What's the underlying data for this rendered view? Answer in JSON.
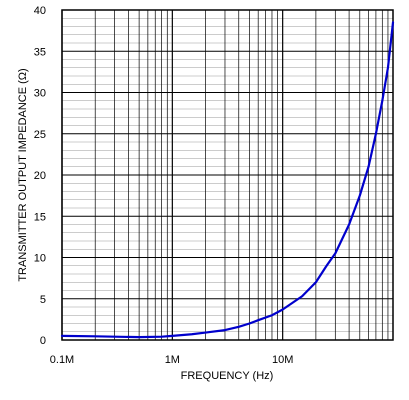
{
  "chart_data": {
    "type": "line",
    "title": "",
    "xlabel": "FREQUENCY (Hz)",
    "ylabel": "TRANSMITTER OUTPUT IMPEDANCE (Ω)",
    "x_scale": "log",
    "xlim": [
      100000,
      100000000
    ],
    "ylim": [
      0,
      40
    ],
    "grid": true,
    "line_color": "#0000cc",
    "x_ticks": [
      {
        "value": 100000,
        "label": "0.1M"
      },
      {
        "value": 1000000,
        "label": "1M"
      },
      {
        "value": 10000000,
        "label": "10M"
      }
    ],
    "y_ticks": [
      {
        "value": 0,
        "label": "0"
      },
      {
        "value": 5,
        "label": "5"
      },
      {
        "value": 10,
        "label": "10"
      },
      {
        "value": 15,
        "label": "15"
      },
      {
        "value": 20,
        "label": "20"
      },
      {
        "value": 25,
        "label": "25"
      },
      {
        "value": 30,
        "label": "30"
      },
      {
        "value": 35,
        "label": "35"
      },
      {
        "value": 40,
        "label": "40"
      }
    ],
    "series": [
      {
        "x": [
          100000,
          200000,
          300000,
          500000,
          800000,
          1000000,
          1500000,
          2000000,
          3000000,
          4000000,
          5000000,
          6000000,
          8000000,
          10000000,
          15000000,
          20000000,
          25000000,
          30000000,
          40000000,
          50000000,
          60000000,
          70000000,
          80000000,
          90000000,
          100000000
        ],
        "y": [
          0.5,
          0.45,
          0.4,
          0.35,
          0.4,
          0.5,
          0.7,
          0.9,
          1.2,
          1.6,
          2.0,
          2.4,
          3.0,
          3.7,
          5.3,
          7.0,
          9.0,
          10.5,
          14.0,
          17.5,
          21.0,
          25.0,
          29.0,
          33.0,
          38.5
        ]
      }
    ]
  }
}
